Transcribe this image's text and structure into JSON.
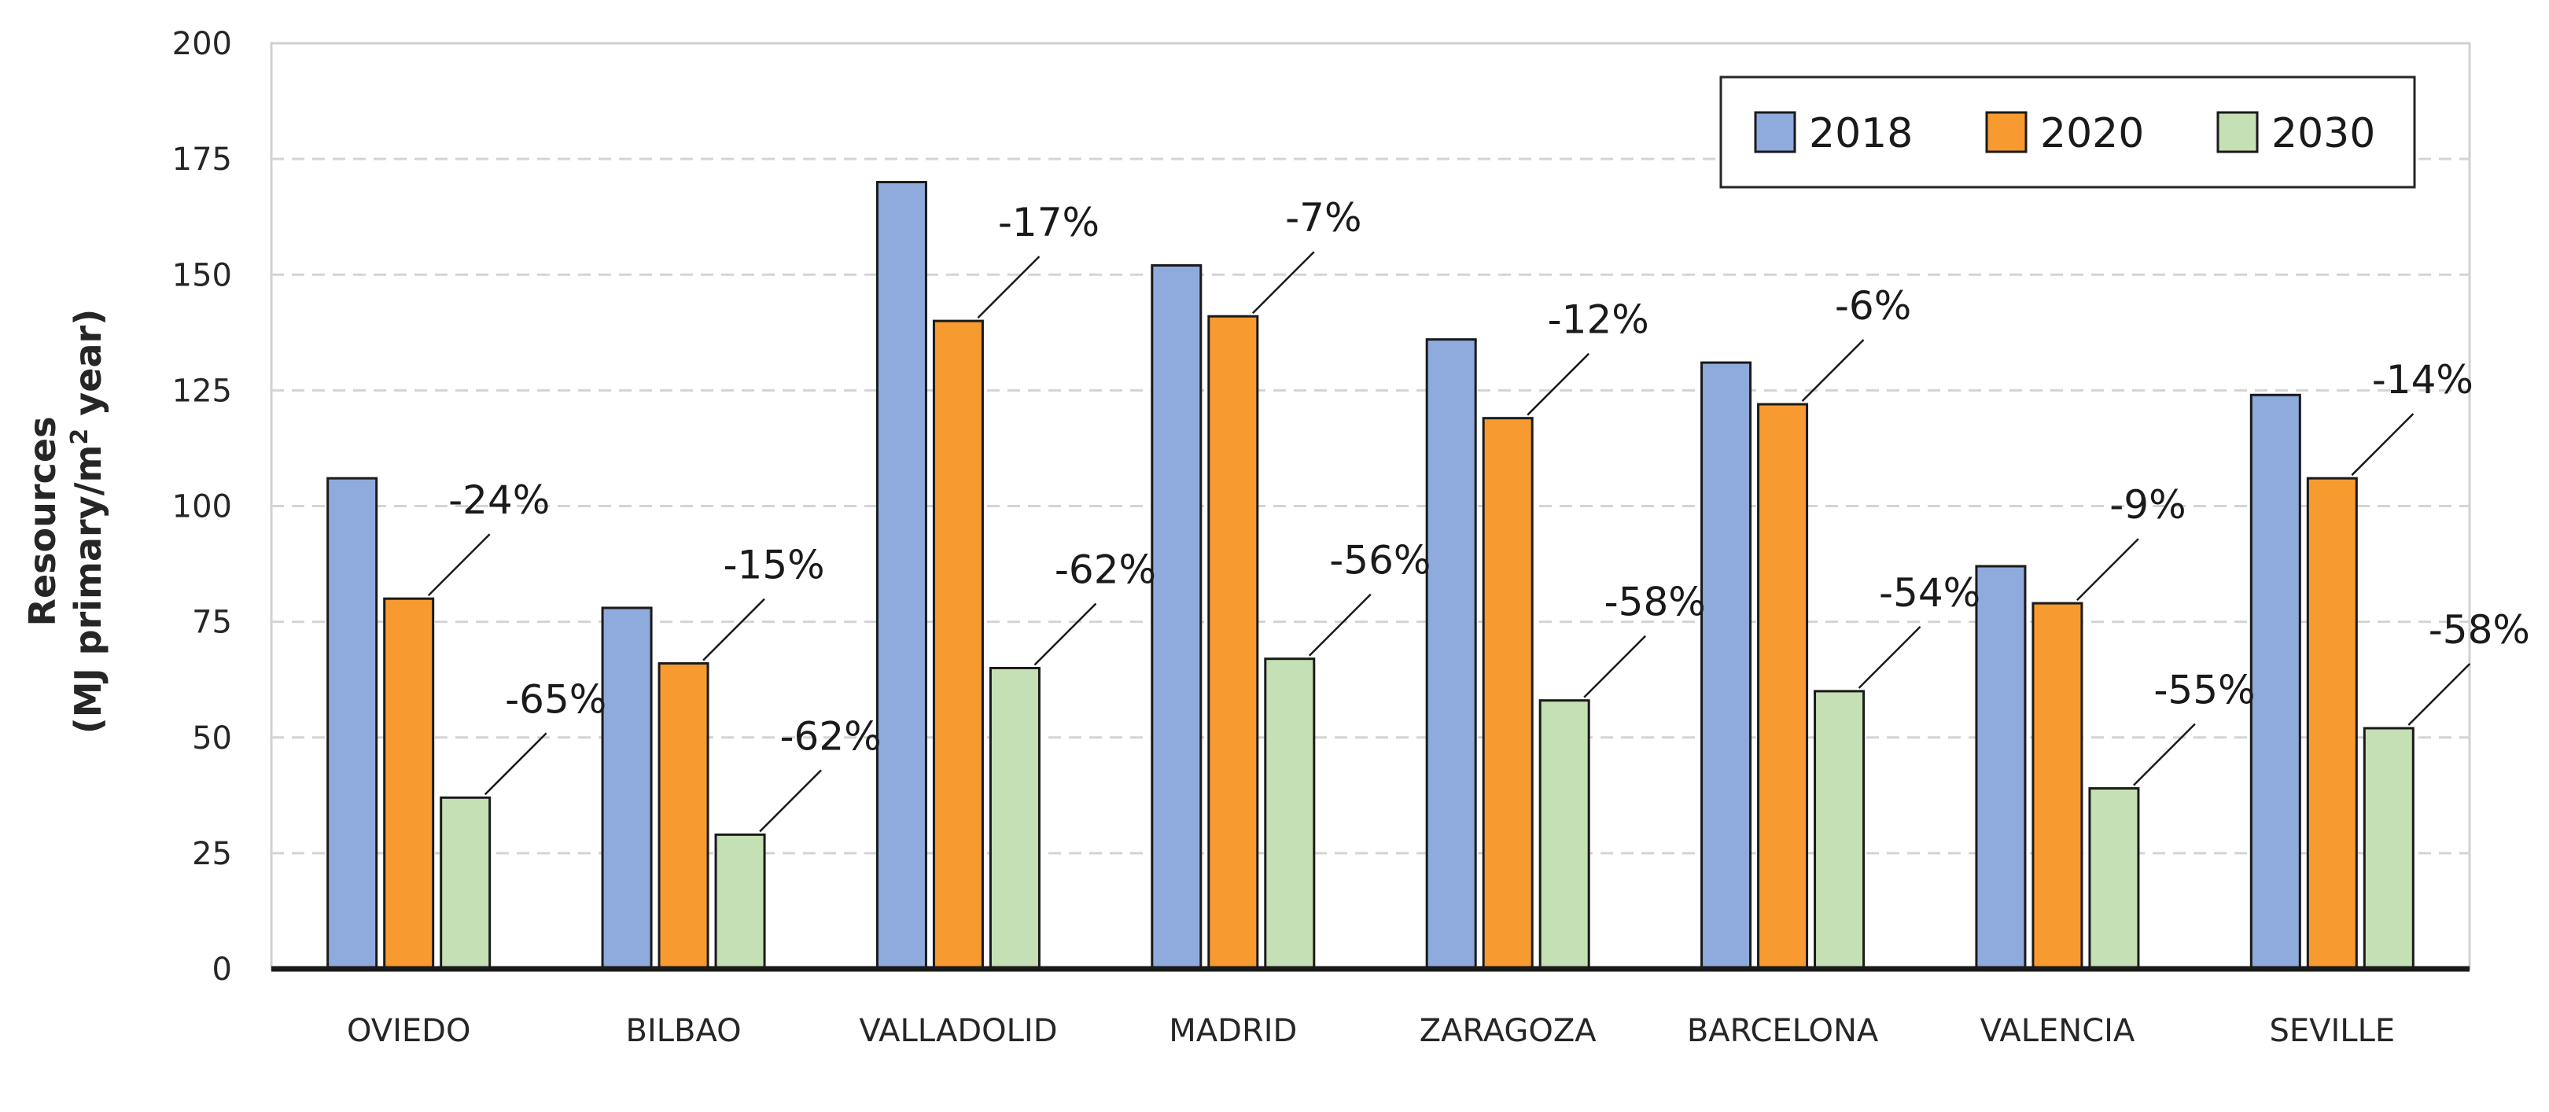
{
  "chart_data": {
    "type": "bar",
    "title": "",
    "xlabel": "",
    "ylabel_line1": "Resources",
    "ylabel_line2_prefix": "(MJ primary/m",
    "ylabel_line2_sup": "2",
    "ylabel_line2_suffix": " year)",
    "ylim": [
      0,
      200
    ],
    "yticks": [
      0,
      25,
      50,
      75,
      100,
      125,
      150,
      175,
      200
    ],
    "grid": "horizontal-dashed",
    "legend_position": "top-right",
    "categories": [
      "OVIEDO",
      "BILBAO",
      "VALLADOLID",
      "MADRID",
      "ZARAGOZA",
      "BARCELONA",
      "VALENCIA",
      "SEVILLE"
    ],
    "series": [
      {
        "name": "2018",
        "color": "#8faadc",
        "values": [
          106,
          78,
          170,
          152,
          136,
          131,
          87,
          124
        ],
        "annotations": [
          "",
          "",
          "",
          "",
          "",
          "",
          "",
          ""
        ]
      },
      {
        "name": "2020",
        "color": "#f79a30",
        "values": [
          80,
          66,
          140,
          141,
          119,
          122,
          79,
          106
        ],
        "annotations": [
          "-24%",
          "-15%",
          "-17%",
          "-7%",
          "-12%",
          "-6%",
          "-9%",
          "-14%"
        ]
      },
      {
        "name": "2030",
        "color": "#c5e0b4",
        "values": [
          37,
          29,
          65,
          67,
          58,
          60,
          39,
          52
        ],
        "annotations": [
          "-65%",
          "-62%",
          "-62%",
          "-56%",
          "-58%",
          "-54%",
          "-55%",
          "-58%"
        ]
      }
    ]
  }
}
